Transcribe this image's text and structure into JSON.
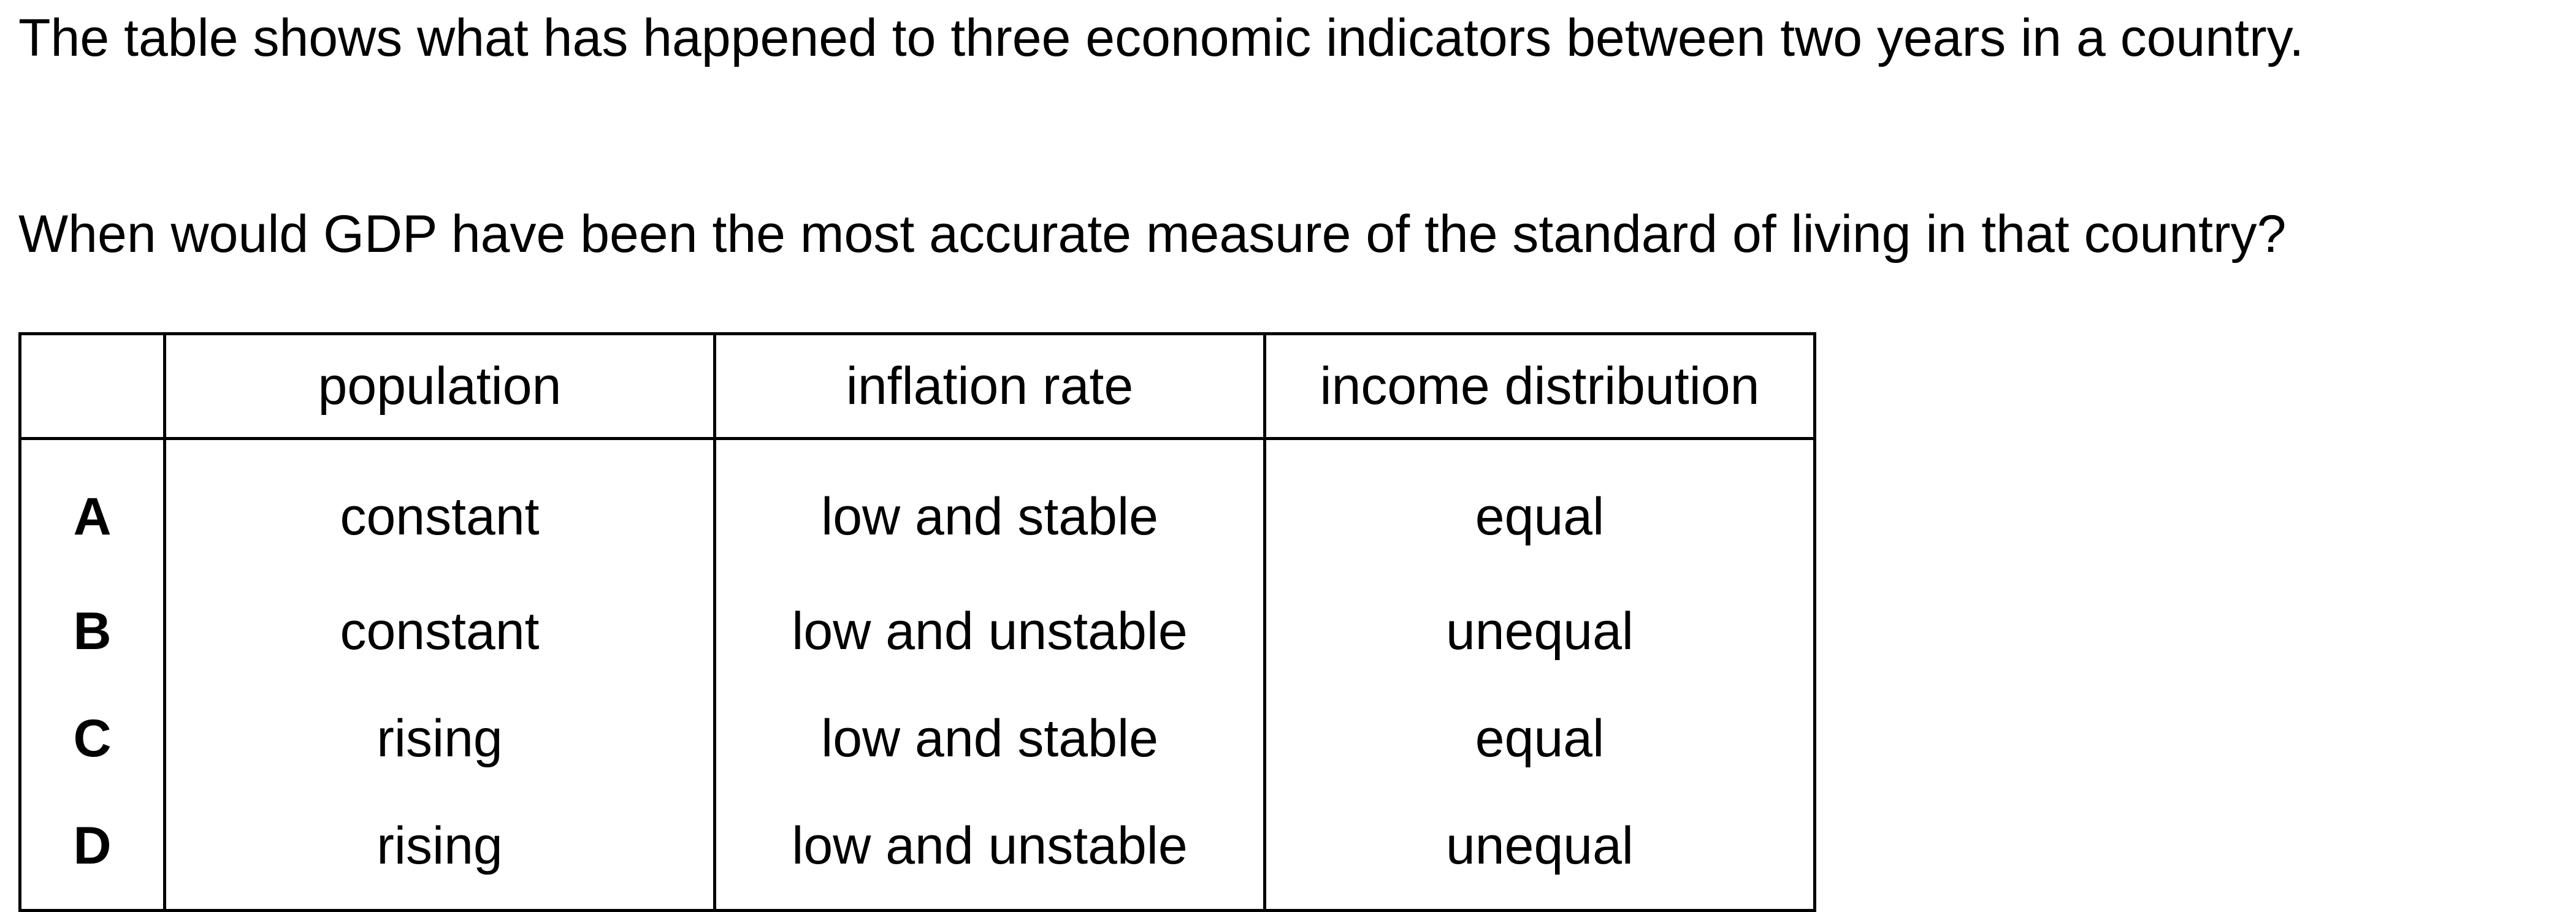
{
  "intro": "The table shows what has happened to three economic indicators between two years in a country.",
  "question": "When would GDP have been the most accurate measure of the standard of living in that country?",
  "table": {
    "headers": [
      "",
      "population",
      "inflation rate",
      "income distribution"
    ],
    "rows": [
      {
        "key": "A",
        "population": "constant",
        "inflation_rate": "low and stable",
        "income_distribution": "equal"
      },
      {
        "key": "B",
        "population": "constant",
        "inflation_rate": "low and unstable",
        "income_distribution": "unequal"
      },
      {
        "key": "C",
        "population": "rising",
        "inflation_rate": "low and stable",
        "income_distribution": "equal"
      },
      {
        "key": "D",
        "population": "rising",
        "inflation_rate": "low and unstable",
        "income_distribution": "unequal"
      }
    ]
  }
}
